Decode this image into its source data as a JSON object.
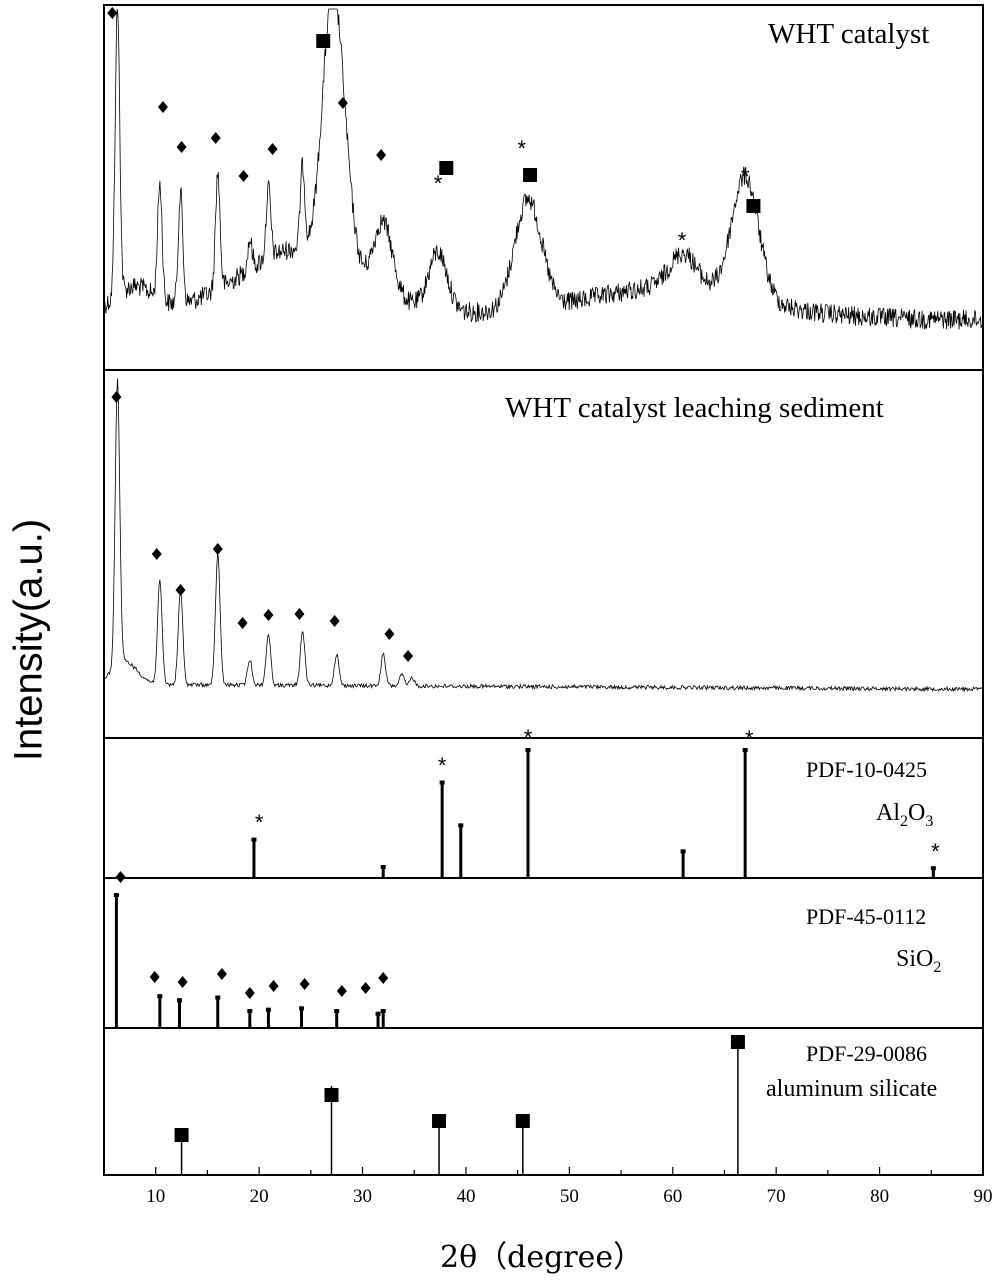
{
  "chart_data": {
    "type": "line",
    "xlabel": "2θ（degree）",
    "ylabel": "Intensity(a.u.)",
    "xlim": [
      5,
      90
    ],
    "x_ticks": [
      10,
      20,
      30,
      40,
      50,
      60,
      70,
      80,
      90
    ],
    "markers": {
      "diamond": "◆",
      "square": "■",
      "star": "*"
    },
    "panels": [
      {
        "name": "WHT catalyst",
        "title": "WHT catalyst",
        "type": "line",
        "peaks": [
          {
            "x": 6.3,
            "y": 100
          },
          {
            "x": 10.4,
            "y": 40
          },
          {
            "x": 12.4,
            "y": 38
          },
          {
            "x": 16.0,
            "y": 40
          },
          {
            "x": 19.1,
            "y": 10
          },
          {
            "x": 20.9,
            "y": 24
          },
          {
            "x": 24.2,
            "y": 28
          },
          {
            "x": 26.9,
            "y": 72
          },
          {
            "x": 28.0,
            "y": 36
          },
          {
            "x": 32.0,
            "y": 24
          },
          {
            "x": 37.3,
            "y": 20
          },
          {
            "x": 46.0,
            "y": 38
          },
          {
            "x": 61.0,
            "y": 12
          },
          {
            "x": 67.0,
            "y": 42
          }
        ],
        "annotations": [
          {
            "marker": "diamond",
            "x": 5.8
          },
          {
            "marker": "diamond",
            "x": 10.7
          },
          {
            "marker": "diamond",
            "x": 12.5
          },
          {
            "marker": "diamond",
            "x": 15.8
          },
          {
            "marker": "diamond",
            "x": 18.5
          },
          {
            "marker": "diamond",
            "x": 21.3
          },
          {
            "marker": "diamond",
            "x": 28.1
          },
          {
            "marker": "diamond",
            "x": 31.8
          },
          {
            "marker": "square",
            "x": 26.2
          },
          {
            "marker": "square",
            "x": 38.1
          },
          {
            "marker": "square",
            "x": 46.2
          },
          {
            "marker": "square",
            "x": 67.8
          },
          {
            "marker": "star",
            "x": 37.3
          },
          {
            "marker": "star",
            "x": 45.4
          },
          {
            "marker": "star",
            "x": 60.9
          },
          {
            "marker": "star",
            "x": 67.0
          }
        ]
      },
      {
        "name": "WHT catalyst leaching sediment",
        "title": "WHT catalyst leaching sediment",
        "type": "line",
        "peaks": [
          {
            "x": 6.3,
            "y": 100
          },
          {
            "x": 10.4,
            "y": 36
          },
          {
            "x": 12.4,
            "y": 33
          },
          {
            "x": 16.0,
            "y": 46
          },
          {
            "x": 19.1,
            "y": 9
          },
          {
            "x": 20.9,
            "y": 18
          },
          {
            "x": 24.2,
            "y": 19
          },
          {
            "x": 27.5,
            "y": 11
          },
          {
            "x": 32.0,
            "y": 11
          },
          {
            "x": 33.8,
            "y": 4
          },
          {
            "x": 34.8,
            "y": 3
          }
        ],
        "annotations": [
          {
            "marker": "diamond",
            "x": 6.2
          },
          {
            "marker": "diamond",
            "x": 10.1
          },
          {
            "marker": "diamond",
            "x": 12.4
          },
          {
            "marker": "diamond",
            "x": 16.0
          },
          {
            "marker": "diamond",
            "x": 18.4
          },
          {
            "marker": "diamond",
            "x": 20.9
          },
          {
            "marker": "diamond",
            "x": 23.9
          },
          {
            "marker": "diamond",
            "x": 27.3
          },
          {
            "marker": "diamond",
            "x": 32.6
          },
          {
            "marker": "diamond",
            "x": 34.4
          }
        ]
      },
      {
        "name": "Al2O3",
        "ref_id": "PDF-10-0425",
        "label_main": "Al",
        "label_sub1": "2",
        "label_mid": "O",
        "label_sub2": "3",
        "type": "stick",
        "sticks": [
          {
            "x": 19.5,
            "y": 31
          },
          {
            "x": 32.0,
            "y": 10
          },
          {
            "x": 37.7,
            "y": 75
          },
          {
            "x": 39.5,
            "y": 42
          },
          {
            "x": 46.0,
            "y": 100
          },
          {
            "x": 61.0,
            "y": 22
          },
          {
            "x": 67.0,
            "y": 100
          },
          {
            "x": 85.2,
            "y": 9
          }
        ],
        "annotations": [
          {
            "marker": "star",
            "x": 20.0
          },
          {
            "marker": "star",
            "x": 37.7
          },
          {
            "marker": "star",
            "x": 46.0
          },
          {
            "marker": "star",
            "x": 67.4
          },
          {
            "marker": "star",
            "x": 85.4
          },
          {
            "marker": "diamond",
            "x": 6.6
          }
        ]
      },
      {
        "name": "SiO2",
        "ref_id": "PDF-45-0112",
        "label_main": "SiO",
        "label_sub1": "2",
        "type": "stick",
        "sticks": [
          {
            "x": 6.2,
            "y": 100
          },
          {
            "x": 10.4,
            "y": 25
          },
          {
            "x": 12.3,
            "y": 22
          },
          {
            "x": 16.0,
            "y": 24
          },
          {
            "x": 19.1,
            "y": 14
          },
          {
            "x": 20.9,
            "y": 15
          },
          {
            "x": 24.1,
            "y": 16
          },
          {
            "x": 27.5,
            "y": 14
          },
          {
            "x": 31.5,
            "y": 12
          },
          {
            "x": 32.0,
            "y": 14
          }
        ],
        "annotations": [
          {
            "marker": "diamond",
            "x": 9.9
          },
          {
            "marker": "diamond",
            "x": 12.6
          },
          {
            "marker": "diamond",
            "x": 16.4
          },
          {
            "marker": "diamond",
            "x": 19.1
          },
          {
            "marker": "diamond",
            "x": 21.4
          },
          {
            "marker": "diamond",
            "x": 24.4
          },
          {
            "marker": "diamond",
            "x": 28.0
          },
          {
            "marker": "diamond",
            "x": 30.3
          },
          {
            "marker": "diamond",
            "x": 32.0
          }
        ]
      },
      {
        "name": "aluminum silicate",
        "ref_id": "PDF-29-0086",
        "label_main": "aluminum silicate",
        "type": "stick",
        "sticks": [
          {
            "x": 12.5,
            "y": 32
          },
          {
            "x": 27.0,
            "y": 70
          },
          {
            "x": 37.4,
            "y": 42
          },
          {
            "x": 45.5,
            "y": 42
          },
          {
            "x": 66.3,
            "y": 100
          }
        ],
        "annotations": [
          {
            "marker": "square",
            "x": 12.5
          },
          {
            "marker": "square",
            "x": 27.0
          },
          {
            "marker": "square",
            "x": 37.4
          },
          {
            "marker": "square",
            "x": 45.5
          },
          {
            "marker": "square",
            "x": 66.3
          }
        ]
      }
    ]
  }
}
